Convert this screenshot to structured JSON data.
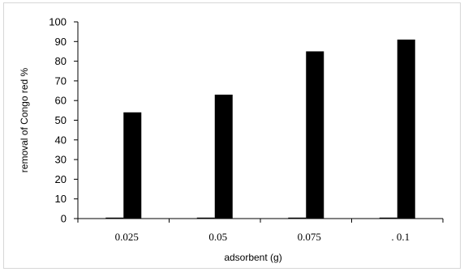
{
  "chart_data": {
    "type": "bar",
    "categories": [
      "0.025",
      "0.05",
      "0.075",
      "0.1"
    ],
    "category_labels": [
      "0.025",
      "0.05",
      "0.075",
      ". 0.1"
    ],
    "series": [
      {
        "values": [
          0,
          0,
          0,
          0
        ],
        "color": "#000000"
      },
      {
        "values": [
          54,
          63,
          85,
          91
        ],
        "color": "#000000"
      }
    ],
    "xlabel": "adsorbent (g)",
    "ylabel": "removal of Congo red %",
    "ylim": [
      0,
      100
    ],
    "yticks": [
      0,
      10,
      20,
      30,
      40,
      50,
      60,
      70,
      80,
      90,
      100
    ],
    "grid": false,
    "legend": "none"
  }
}
